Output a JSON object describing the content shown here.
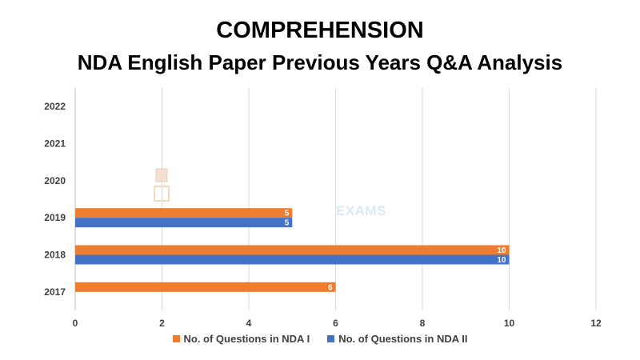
{
  "chart_data": {
    "type": "bar",
    "orientation": "horizontal",
    "title": "COMPREHENSION",
    "subtitle": "NDA English Paper Previous Years Q&A Analysis",
    "categories": [
      "2017",
      "2018",
      "2019",
      "2020",
      "2021",
      "2022"
    ],
    "series": [
      {
        "name": "No. of Questions in NDA I",
        "color": "#ed7d31",
        "values": [
          6,
          10,
          5,
          null,
          null,
          null
        ]
      },
      {
        "name": "No. of Questions in NDA II",
        "color": "#4472c4",
        "values": [
          null,
          10,
          5,
          null,
          null,
          null
        ]
      }
    ],
    "xlim": [
      0,
      12
    ],
    "xticks": [
      0,
      2,
      4,
      6,
      8,
      10,
      12
    ],
    "grid": "vertical",
    "legend": "bottom",
    "watermark": "EXAMS"
  }
}
